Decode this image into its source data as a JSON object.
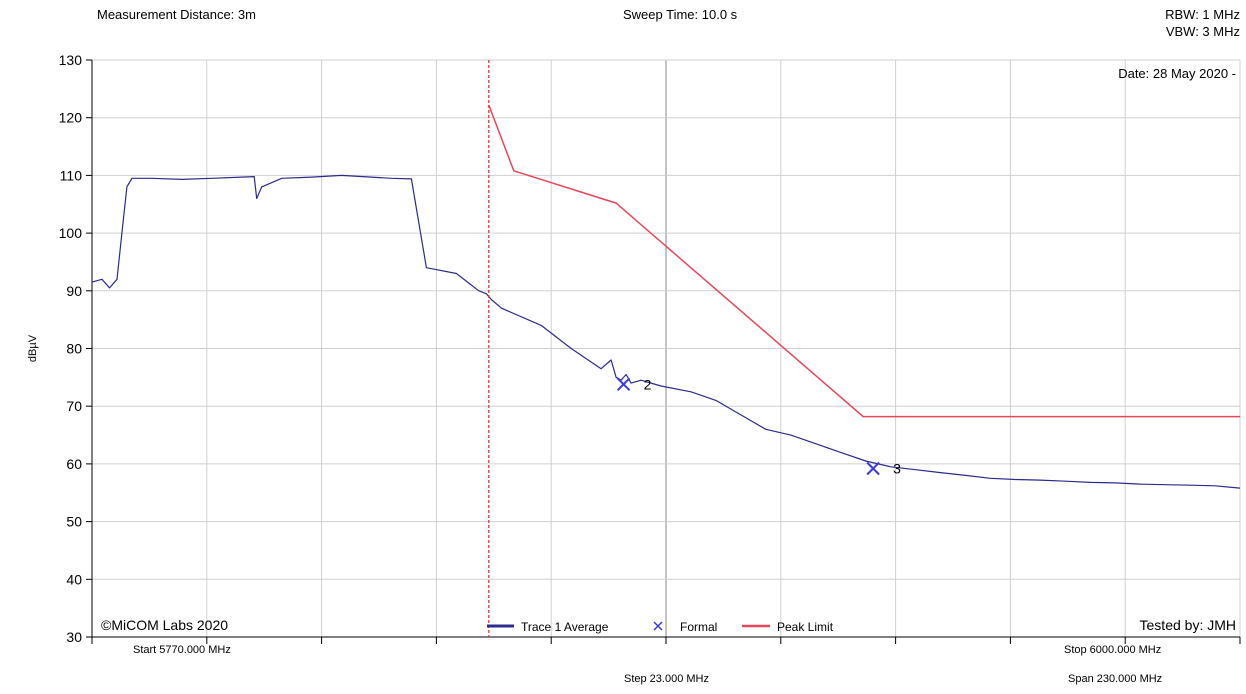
{
  "header": {
    "measurement_distance": "Measurement Distance: 3m",
    "sweep_time": "Sweep Time: 10.0 s",
    "rbw": "RBW: 1 MHz",
    "vbw": "VBW: 3 MHz",
    "date": "Date: 28 May 2020 -"
  },
  "footer": {
    "start": "Start 5770.000 MHz",
    "stop": "Stop 6000.000 MHz",
    "step": "Step 23.000 MHz",
    "span": "Span 230.000 MHz"
  },
  "colors": {
    "trace": "#2b2b8c",
    "limit": "#e8465a",
    "marker": "#3a3adc",
    "cursor": "#e83030",
    "grid": "#d0d0d0"
  },
  "chart_data": {
    "type": "line",
    "xlim": [
      5770,
      6000
    ],
    "ylim": [
      30,
      130
    ],
    "yticks": [
      30,
      40,
      50,
      60,
      70,
      80,
      90,
      100,
      110,
      120,
      130
    ],
    "ylabel": "dBµV",
    "grid": true,
    "legend_position": "bottom-center",
    "legend": [
      "Trace 1 Average",
      "Formal",
      "Peak Limit"
    ],
    "copyright": "©MiCOM Labs 2020",
    "tested_by": "Tested by: JMH",
    "cursor_x": 5849.5,
    "series": [
      {
        "name": "Trace 1 Average",
        "x": [
          5770,
          5772,
          5773.5,
          5775,
          5776,
          5777,
          5778,
          5782,
          5788,
          5794,
          5800,
          5802.5,
          5803,
          5804,
          5808,
          5814,
          5820,
          5830,
          5834,
          5837,
          5843,
          5846,
          5847.5,
          5849,
          5850,
          5852,
          5860,
          5866,
          5872,
          5874,
          5875,
          5876,
          5877,
          5878,
          5880,
          5884,
          5890,
          5895,
          5900,
          5905,
          5910,
          5915,
          5920,
          5925,
          5930,
          5935,
          5940,
          5945,
          5950,
          5955,
          5960,
          5965,
          5970,
          5975,
          5980,
          5985,
          5990,
          5995,
          6000
        ],
        "y": [
          91.5,
          92,
          90.5,
          92,
          100,
          108,
          109.5,
          109.5,
          109.3,
          109.5,
          109.7,
          109.8,
          106,
          108,
          109.5,
          109.7,
          110,
          109.5,
          109.4,
          94,
          93,
          91,
          90,
          89.5,
          88.5,
          87,
          84,
          80,
          76.5,
          78,
          75,
          74.5,
          75.5,
          74,
          74.5,
          73.5,
          72.5,
          71,
          68.5,
          66,
          65,
          63.5,
          62,
          60.5,
          59.5,
          59,
          58.5,
          58,
          57.5,
          57.3,
          57.2,
          57,
          56.8,
          56.7,
          56.5,
          56.4,
          56.3,
          56.2,
          55.8
        ]
      },
      {
        "name": "Peak Limit",
        "x": [
          5849.5,
          5854.5,
          5875,
          5924.5,
          6000
        ],
        "y": [
          122.2,
          110.8,
          105.2,
          68.2,
          68.2
        ]
      }
    ],
    "markers": [
      {
        "name": "Formal",
        "label": "2",
        "x": 5876.5,
        "y": 73.8
      },
      {
        "name": "Formal",
        "label": "3",
        "x": 5926.5,
        "y": 59.2
      }
    ]
  }
}
